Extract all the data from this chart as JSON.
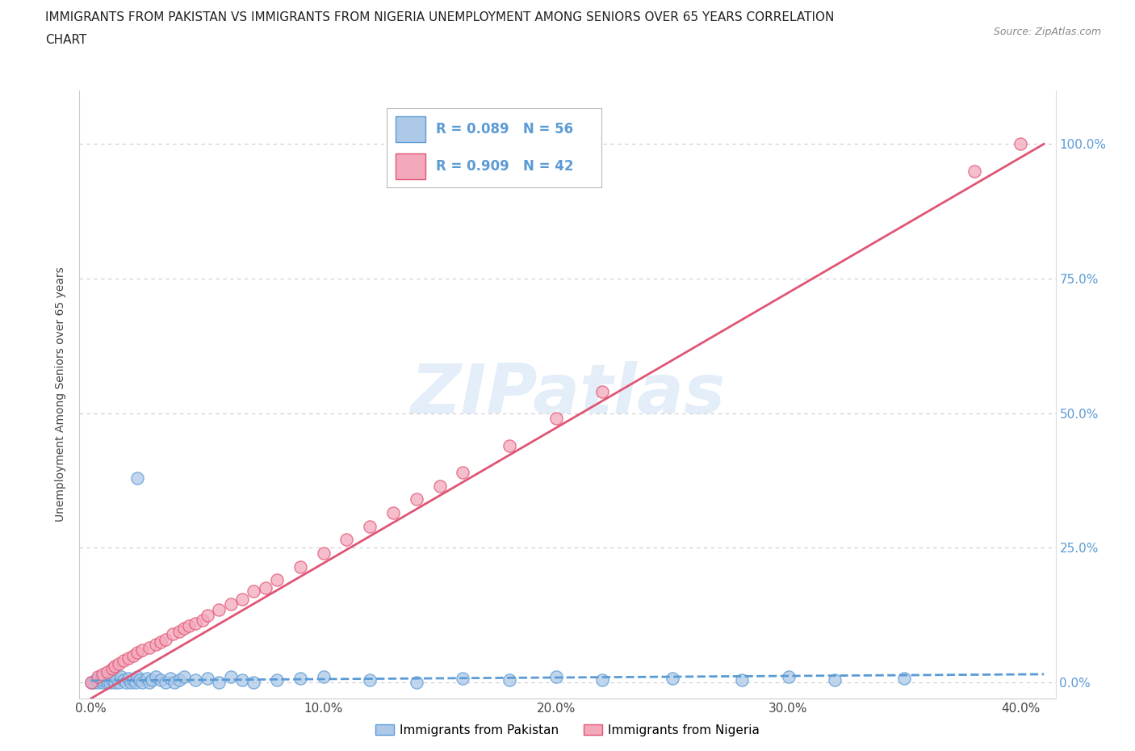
{
  "title_line1": "IMMIGRANTS FROM PAKISTAN VS IMMIGRANTS FROM NIGERIA UNEMPLOYMENT AMONG SENIORS OVER 65 YEARS CORRELATION",
  "title_line2": "CHART",
  "source": "Source: ZipAtlas.com",
  "watermark": "ZIPatlas",
  "xlabel_ticks": [
    "0.0%",
    "10.0%",
    "20.0%",
    "30.0%",
    "40.0%"
  ],
  "xlabel_vals": [
    0.0,
    0.1,
    0.2,
    0.3,
    0.4
  ],
  "ylabel_ticks": [
    "0.0%",
    "25.0%",
    "50.0%",
    "75.0%",
    "100.0%"
  ],
  "ylabel_vals": [
    0.0,
    0.25,
    0.5,
    0.75,
    1.0
  ],
  "xlim": [
    -0.005,
    0.415
  ],
  "ylim": [
    -0.03,
    1.1
  ],
  "pakistan_R": 0.089,
  "pakistan_N": 56,
  "nigeria_R": 0.909,
  "nigeria_N": 42,
  "pakistan_color": "#adc9e8",
  "nigeria_color": "#f4a8bb",
  "pakistan_line_color": "#5b9bd5",
  "nigeria_line_color": "#e05575",
  "legend_label_pakistan": "Immigrants from Pakistan",
  "legend_label_nigeria": "Immigrants from Nigeria",
  "pakistan_scatter_x": [
    0.0,
    0.001,
    0.002,
    0.003,
    0.004,
    0.005,
    0.005,
    0.006,
    0.007,
    0.008,
    0.008,
    0.009,
    0.01,
    0.011,
    0.012,
    0.013,
    0.014,
    0.015,
    0.016,
    0.017,
    0.018,
    0.019,
    0.02,
    0.021,
    0.022,
    0.024,
    0.025,
    0.026,
    0.028,
    0.03,
    0.032,
    0.034,
    0.036,
    0.038,
    0.04,
    0.045,
    0.05,
    0.055,
    0.06,
    0.065,
    0.07,
    0.08,
    0.09,
    0.1,
    0.12,
    0.14,
    0.16,
    0.18,
    0.2,
    0.22,
    0.25,
    0.28,
    0.3,
    0.32,
    0.35,
    0.02
  ],
  "pakistan_scatter_y": [
    0.0,
    0.0,
    0.005,
    0.0,
    0.01,
    0.0,
    0.005,
    0.008,
    0.0,
    0.015,
    0.0,
    0.005,
    0.0,
    0.008,
    0.0,
    0.01,
    0.005,
    0.0,
    0.008,
    0.0,
    0.005,
    0.0,
    0.01,
    0.005,
    0.0,
    0.008,
    0.0,
    0.005,
    0.01,
    0.005,
    0.0,
    0.008,
    0.0,
    0.005,
    0.01,
    0.005,
    0.008,
    0.0,
    0.01,
    0.005,
    0.0,
    0.005,
    0.008,
    0.01,
    0.005,
    0.0,
    0.008,
    0.005,
    0.01,
    0.005,
    0.008,
    0.005,
    0.01,
    0.005,
    0.008,
    0.38
  ],
  "nigeria_scatter_x": [
    0.0,
    0.003,
    0.005,
    0.007,
    0.009,
    0.01,
    0.012,
    0.014,
    0.016,
    0.018,
    0.02,
    0.022,
    0.025,
    0.028,
    0.03,
    0.032,
    0.035,
    0.038,
    0.04,
    0.042,
    0.045,
    0.048,
    0.05,
    0.055,
    0.06,
    0.065,
    0.07,
    0.075,
    0.08,
    0.09,
    0.1,
    0.11,
    0.12,
    0.13,
    0.14,
    0.15,
    0.16,
    0.18,
    0.2,
    0.22,
    0.38,
    0.4
  ],
  "nigeria_scatter_y": [
    0.0,
    0.01,
    0.015,
    0.02,
    0.025,
    0.03,
    0.035,
    0.04,
    0.045,
    0.05,
    0.055,
    0.06,
    0.065,
    0.07,
    0.075,
    0.08,
    0.09,
    0.095,
    0.1,
    0.105,
    0.11,
    0.115,
    0.125,
    0.135,
    0.145,
    0.155,
    0.17,
    0.175,
    0.19,
    0.215,
    0.24,
    0.265,
    0.29,
    0.315,
    0.34,
    0.365,
    0.39,
    0.44,
    0.49,
    0.54,
    0.95,
    1.0
  ],
  "pakistan_trend_x": [
    0.0,
    0.41
  ],
  "pakistan_trend_y": [
    0.003,
    0.015
  ],
  "nigeria_trend_x": [
    0.0,
    0.41
  ],
  "nigeria_trend_y": [
    -0.03,
    1.0
  ],
  "background_color": "#ffffff",
  "grid_color": "#cccccc",
  "ylabel": "Unemployment Among Seniors over 65 years",
  "tick_color": "#5b9bd5"
}
